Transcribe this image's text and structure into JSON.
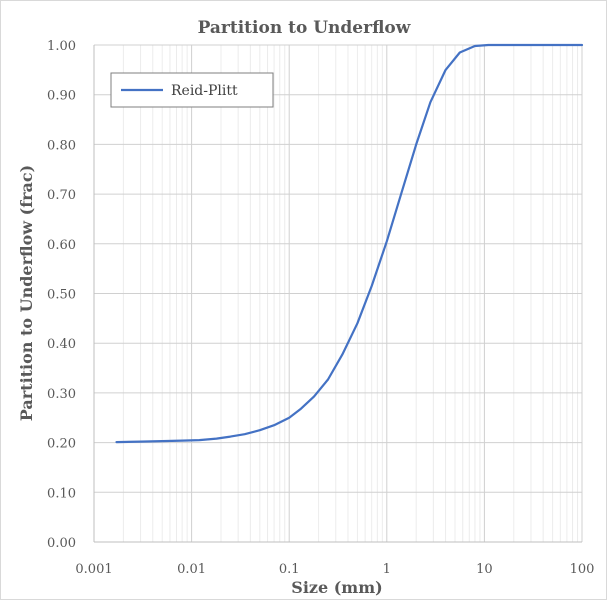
{
  "chart_data": {
    "type": "line",
    "title": "Partition to Underflow",
    "xlabel": "Size (mm)",
    "ylabel": "Partition to Underflow (frac)",
    "x_scale": "log",
    "xlim": [
      0.001,
      100
    ],
    "ylim": [
      0,
      1
    ],
    "x_ticks": [
      0.001,
      0.01,
      0.1,
      1,
      10,
      100
    ],
    "x_tick_labels": [
      "0.001",
      "0.01",
      "0.1",
      "1",
      "10",
      "100"
    ],
    "y_ticks": [
      0,
      0.1,
      0.2,
      0.3,
      0.4,
      0.5,
      0.6,
      0.7,
      0.8,
      0.9,
      1.0
    ],
    "y_tick_labels": [
      "0.00",
      "0.10",
      "0.20",
      "0.30",
      "0.40",
      "0.50",
      "0.60",
      "0.70",
      "0.80",
      "0.90",
      "1.00"
    ],
    "grid": true,
    "legend_position": "top-left",
    "series": [
      {
        "name": "Reid-Plitt",
        "color": "#4472c4",
        "x": [
          0.0017,
          0.003,
          0.005,
          0.008,
          0.012,
          0.018,
          0.025,
          0.035,
          0.05,
          0.07,
          0.1,
          0.13,
          0.18,
          0.25,
          0.35,
          0.5,
          0.7,
          1.0,
          1.4,
          2.0,
          2.8,
          4.0,
          5.6,
          8.0,
          11,
          16,
          25,
          50,
          100
        ],
        "y": [
          0.201,
          0.202,
          0.203,
          0.204,
          0.205,
          0.208,
          0.212,
          0.217,
          0.225,
          0.235,
          0.25,
          0.267,
          0.293,
          0.327,
          0.377,
          0.44,
          0.515,
          0.605,
          0.7,
          0.8,
          0.885,
          0.95,
          0.985,
          0.998,
          1.0,
          1.0,
          1.0,
          1.0,
          1.0
        ]
      }
    ]
  }
}
